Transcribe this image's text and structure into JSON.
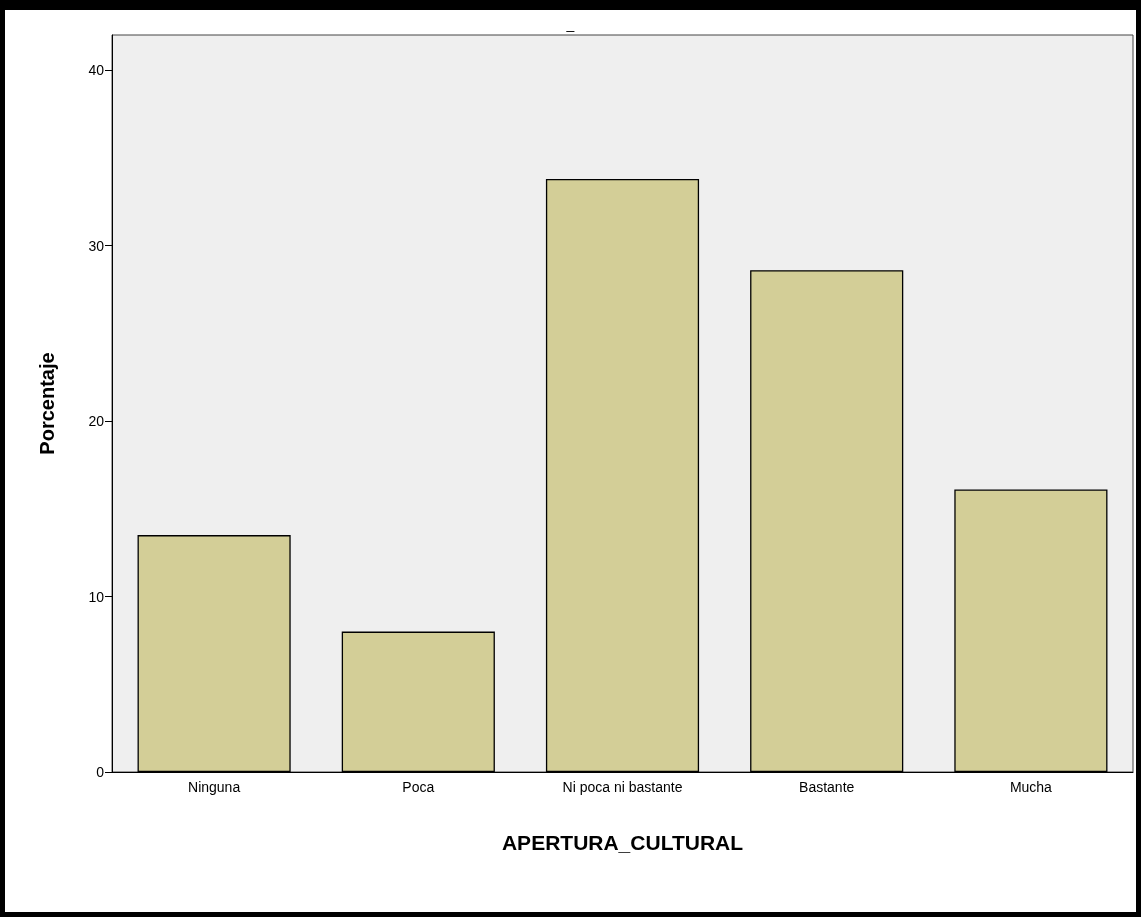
{
  "chart_data": {
    "type": "bar",
    "title": "_",
    "xlabel": "APERTURA_CULTURAL",
    "ylabel": "Porcentaje",
    "categories": [
      "Ninguna",
      "Poca",
      "Ni poca ni bastante",
      "Bastante",
      "Mucha"
    ],
    "values": [
      13.5,
      8.0,
      33.8,
      28.6,
      16.1
    ],
    "color": "#d3ce97",
    "ylim": [
      0,
      42
    ],
    "yticks": [
      0,
      10,
      20,
      30,
      40
    ],
    "grid": false
  }
}
